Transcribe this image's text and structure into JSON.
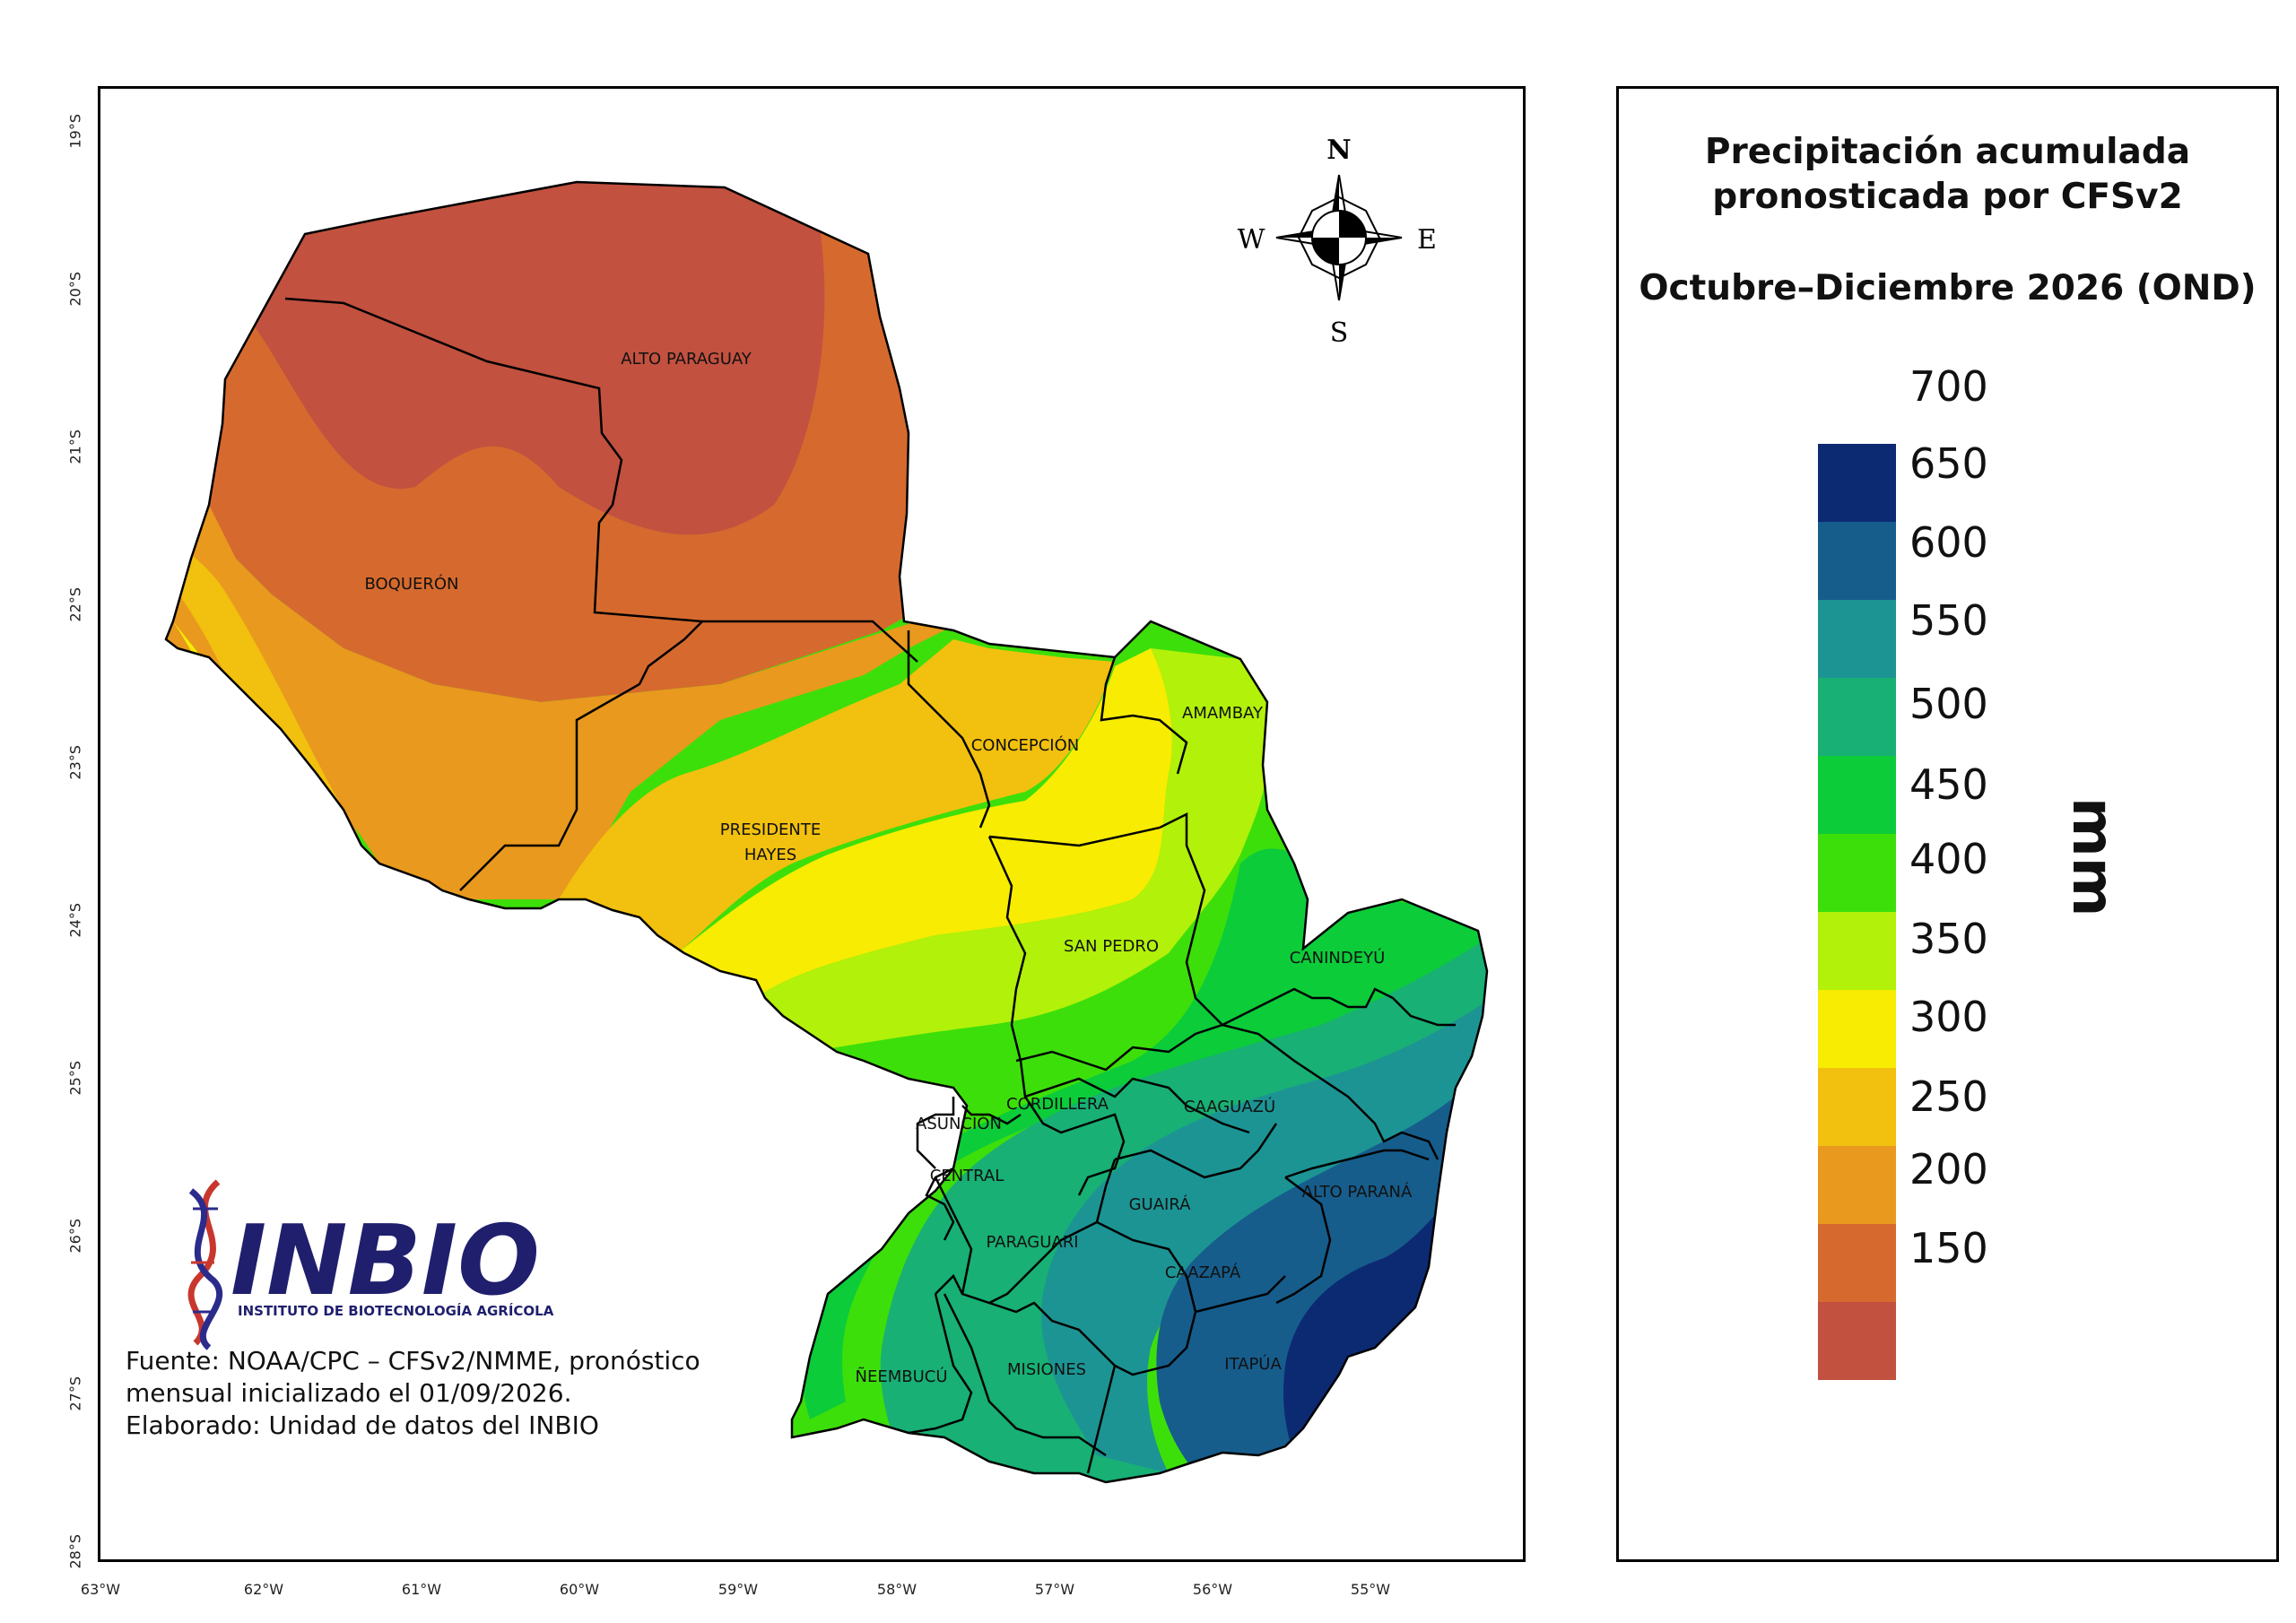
{
  "map": {
    "lat_labels": [
      "19°S",
      "20°S",
      "21°S",
      "22°S",
      "23°S",
      "24°S",
      "25°S",
      "26°S",
      "27°S",
      "28°S"
    ],
    "lon_labels": [
      "63°W",
      "62°W",
      "61°W",
      "60°W",
      "59°W",
      "58°W",
      "57°W",
      "56°W",
      "55°W"
    ],
    "departments": {
      "alto_paraguay": "ALTO PARAGUAY",
      "boqueron": "BOQUERÓN",
      "presidente_hayes_1": "PRESIDENTE",
      "presidente_hayes_2": "HAYES",
      "concepcion": "CONCEPCIÓN",
      "amambay": "AMAMBAY",
      "san_pedro": "SAN PEDRO",
      "canindeyu": "CANINDEYÚ",
      "cordillera": "CORDILLERA",
      "caaguazu": "CAAGUAZÚ",
      "asuncion": "ASUNCIÓN",
      "central": "CENTRAL",
      "guaira": "GUAIRÁ",
      "alto_parana": "ALTO PARANÁ",
      "paraguari": "PARAGUARI",
      "caazapa": "CAAZAPÁ",
      "neembucu": "ÑEEMBUCÚ",
      "misiones": "MISIONES",
      "itapua": "ITAPÚA"
    },
    "compass": {
      "n": "N",
      "s": "S",
      "e": "E",
      "w": "W"
    },
    "logo": {
      "name": "INBIO",
      "subtitle": "INSTITUTO DE BIOTECNOLOGÍA AGRÍCOLA"
    },
    "source_lines": [
      "Fuente: NOAA/CPC – CFSv2/NMME, pronóstico",
      "mensual inicializado el 01/09/2026.",
      "Elaborado: Unidad de datos del INBIO"
    ]
  },
  "legend": {
    "title_line1": "Precipitación acumulada",
    "title_line2": "pronosticada por CFSv2",
    "period": "Octubre–Diciembre 2026 (OND)",
    "unit": "mm",
    "classes": [
      {
        "label": "700",
        "color": "#0c2a72"
      },
      {
        "label": "650",
        "color": "#165d8c"
      },
      {
        "label": "600",
        "color": "#1d9494"
      },
      {
        "label": "550",
        "color": "#18b074"
      },
      {
        "label": "500",
        "color": "#0ccc3a"
      },
      {
        "label": "450",
        "color": "#3ddf0a"
      },
      {
        "label": "400",
        "color": "#b2f10a"
      },
      {
        "label": "350",
        "color": "#f7ec02"
      },
      {
        "label": "300",
        "color": "#f2c00e"
      },
      {
        "label": "250",
        "color": "#e8991e"
      },
      {
        "label": "200",
        "color": "#d66a2e"
      },
      {
        "label": "150",
        "color": "#c2513f"
      }
    ]
  }
}
